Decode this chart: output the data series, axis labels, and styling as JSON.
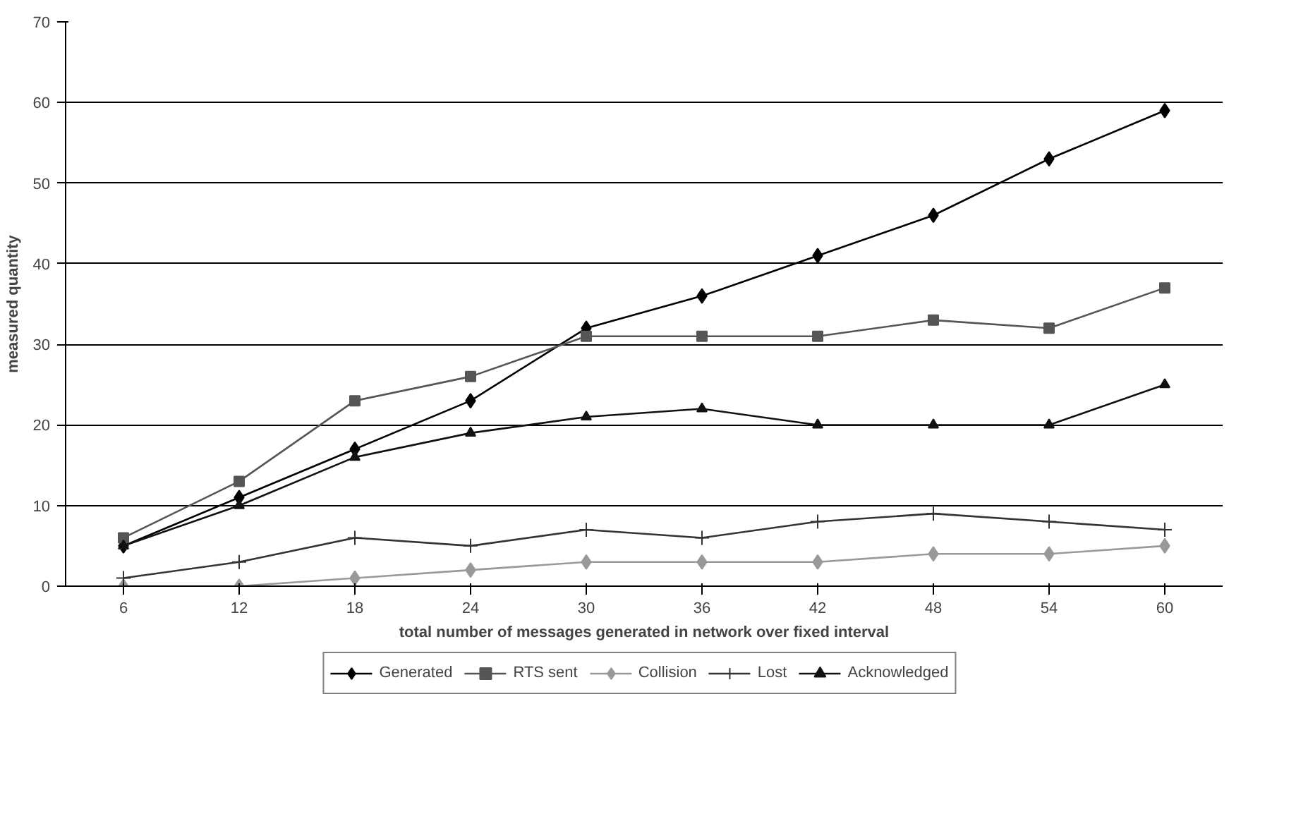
{
  "chart_data": {
    "type": "line",
    "xlabel": "total number of messages generated in network over fixed interval",
    "ylabel": "measured quantity",
    "categories": [
      "6",
      "12",
      "18",
      "24",
      "30",
      "36",
      "42",
      "48",
      "54",
      "60"
    ],
    "ylim": [
      0,
      70
    ],
    "yticks": [
      0,
      10,
      20,
      30,
      40,
      50,
      60,
      70
    ],
    "grid": "y",
    "legend": "bottom",
    "series": [
      {
        "name": "Generated",
        "color": "#000000",
        "marker": "diamond",
        "values": [
          5,
          11,
          17,
          23,
          32,
          36,
          41,
          46,
          53,
          59
        ]
      },
      {
        "name": "RTS sent",
        "color": "#555555",
        "marker": "square",
        "values": [
          6,
          13,
          23,
          26,
          31,
          31,
          31,
          33,
          32,
          37
        ]
      },
      {
        "name": "Collision",
        "color": "#999999",
        "marker": "diamond",
        "values": [
          0,
          0,
          1,
          2,
          3,
          3,
          3,
          4,
          4,
          5
        ]
      },
      {
        "name": "Lost",
        "color": "#333333",
        "marker": "cross",
        "values": [
          1,
          3,
          6,
          5,
          7,
          6,
          8,
          9,
          8,
          7
        ]
      },
      {
        "name": "Acknowledged",
        "color": "#111111",
        "marker": "triangle",
        "values": [
          5,
          10,
          16,
          19,
          21,
          22,
          20,
          20,
          20,
          25
        ]
      }
    ]
  }
}
